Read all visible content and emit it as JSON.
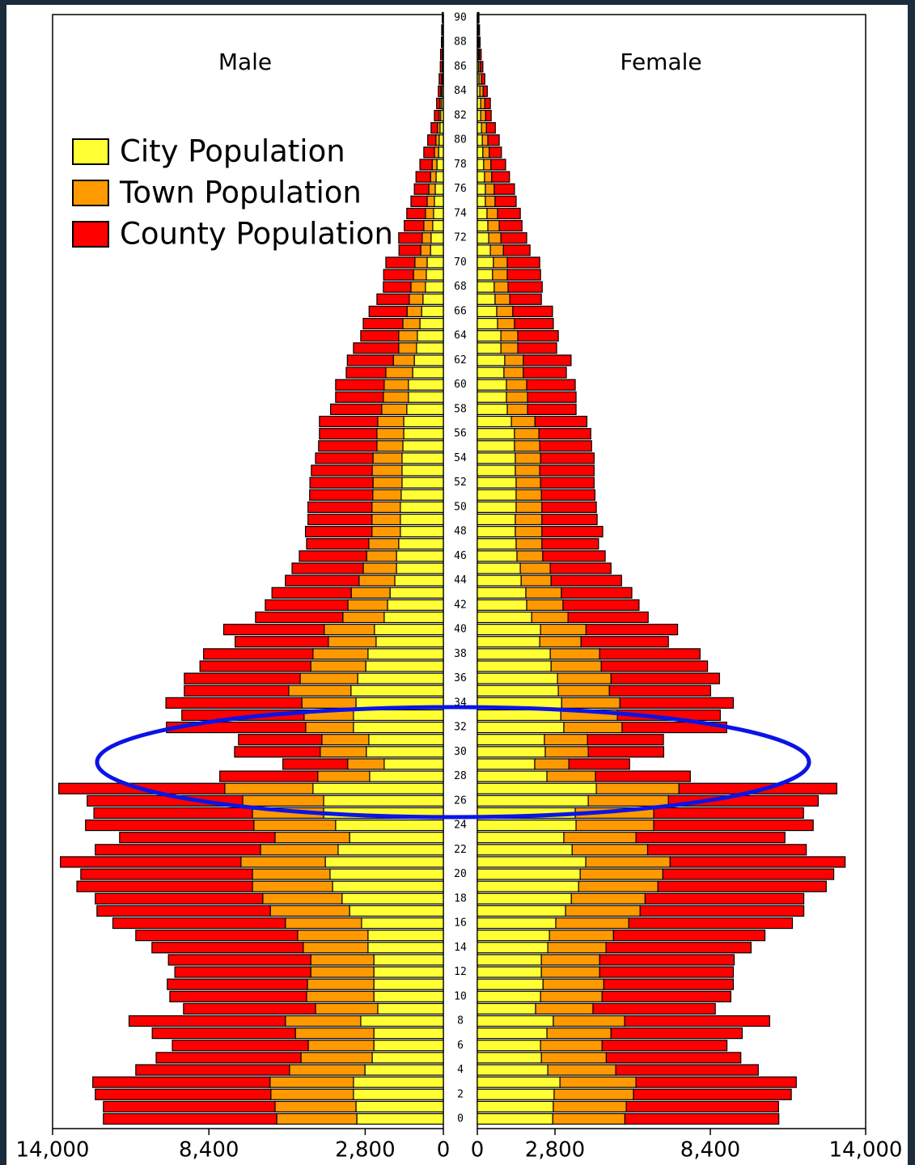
{
  "chart_data": {
    "type": "pyramid",
    "left_title": "Male",
    "right_title": "Female",
    "legend": "upper left",
    "categories": [
      0,
      null,
      2,
      null,
      4,
      null,
      6,
      null,
      8,
      null,
      10,
      null,
      12,
      null,
      14,
      null,
      16,
      null,
      18,
      null,
      20,
      null,
      22,
      null,
      24,
      null,
      26,
      null,
      28,
      null,
      30,
      null,
      32,
      null,
      34,
      null,
      36,
      null,
      38,
      null,
      40,
      null,
      42,
      null,
      44,
      null,
      46,
      null,
      48,
      null,
      50,
      null,
      52,
      null,
      54,
      null,
      56,
      null,
      58,
      null,
      60,
      null,
      62,
      null,
      64,
      null,
      66,
      null,
      68,
      null,
      70,
      null,
      72,
      null,
      74,
      null,
      76,
      null,
      78,
      null,
      80,
      null,
      82,
      null,
      84,
      null,
      86,
      null,
      88,
      null,
      90
    ],
    "xlim": [
      0,
      14000
    ],
    "xticks": [
      0,
      {
        "value": 2800,
        "label": "2,800"
      },
      {
        "value": 8400,
        "label": "8,400"
      },
      {
        "value": 14000,
        "label": "14,000"
      }
    ],
    "series": [
      {
        "name": "City Population",
        "color": "#ffff33",
        "male": [
          3100,
          3130,
          3220,
          3220,
          2810,
          2550,
          2490,
          2490,
          2960,
          2350,
          2490,
          2490,
          2490,
          2490,
          2700,
          2700,
          2930,
          3360,
          3630,
          3970,
          4060,
          4230,
          3770,
          3360,
          3860,
          4290,
          4290,
          4670,
          2640,
          2120,
          2760,
          2670,
          3220,
          3220,
          3130,
          3310,
          3070,
          2780,
          2700,
          2410,
          2470,
          2120,
          2000,
          1910,
          1740,
          1680,
          1680,
          1600,
          1540,
          1540,
          1540,
          1510,
          1480,
          1480,
          1480,
          1450,
          1420,
          1420,
          1310,
          1250,
          1250,
          1100,
          1040,
          960,
          930,
          840,
          780,
          730,
          640,
          610,
          580,
          460,
          440,
          380,
          350,
          320,
          290,
          260,
          230,
          170,
          150,
          120,
          90,
          60,
          50,
          30,
          20,
          20,
          10,
          10,
          10
        ],
        "female": [
          2720,
          2740,
          2770,
          2980,
          2540,
          2310,
          2280,
          2510,
          2740,
          2100,
          2280,
          2370,
          2310,
          2310,
          2540,
          2600,
          2830,
          3180,
          3390,
          3650,
          3710,
          3910,
          3420,
          3120,
          3560,
          3530,
          4000,
          4290,
          2510,
          2070,
          2450,
          2420,
          3120,
          3010,
          3040,
          2920,
          2890,
          2660,
          2630,
          2250,
          2280,
          1960,
          1780,
          1750,
          1580,
          1550,
          1430,
          1400,
          1370,
          1370,
          1400,
          1400,
          1400,
          1370,
          1370,
          1340,
          1340,
          1230,
          1080,
          1050,
          1050,
          960,
          990,
          850,
          850,
          730,
          700,
          640,
          610,
          550,
          580,
          470,
          410,
          380,
          350,
          290,
          290,
          260,
          230,
          200,
          180,
          150,
          120,
          120,
          90,
          60,
          50,
          40,
          30,
          20,
          20
        ]
      },
      {
        "name": "Town Population",
        "color": "#ff9900",
        "male": [
          2870,
          2900,
          2960,
          2990,
          2700,
          2550,
          2350,
          2810,
          2700,
          2230,
          2410,
          2380,
          2260,
          2260,
          2320,
          2520,
          2730,
          2840,
          2840,
          2870,
          2780,
          3020,
          2780,
          2670,
          2930,
          2550,
          2900,
          3160,
          1860,
          1310,
          1650,
          1680,
          1710,
          1770,
          1940,
          2230,
          2060,
          1970,
          1970,
          1710,
          1800,
          1480,
          1420,
          1390,
          1280,
          1190,
          1070,
          1070,
          1020,
          1020,
          1020,
          1020,
          1040,
          1070,
          1040,
          930,
          960,
          930,
          900,
          900,
          870,
          960,
          750,
          640,
          670,
          610,
          520,
          490,
          520,
          460,
          440,
          350,
          320,
          320,
          290,
          260,
          230,
          200,
          170,
          150,
          120,
          90,
          60,
          60,
          40,
          30,
          20,
          20,
          20,
          20,
          10
        ],
        "female": [
          2600,
          2630,
          2860,
          2740,
          2450,
          2340,
          2220,
          2310,
          2570,
          2070,
          2220,
          2190,
          2100,
          2100,
          2100,
          2310,
          2630,
          2690,
          2660,
          2860,
          2980,
          3040,
          2720,
          2600,
          2800,
          2830,
          2890,
          2980,
          1750,
          1230,
          1550,
          1550,
          2100,
          2040,
          2100,
          1840,
          1930,
          1810,
          1780,
          1490,
          1640,
          1310,
          1310,
          1280,
          1080,
          1080,
          930,
          930,
          960,
          960,
          930,
          910,
          880,
          880,
          910,
          910,
          880,
          850,
          730,
          760,
          730,
          700,
          670,
          610,
          610,
          610,
          580,
          530,
          500,
          530,
          500,
          470,
          440,
          410,
          380,
          350,
          320,
          260,
          260,
          230,
          200,
          180,
          180,
          150,
          120,
          90,
          60,
          40,
          30,
          30,
          20
        ]
      },
      {
        "name": "County Population",
        "color": "#ff0000",
        "male": [
          6210,
          6150,
          6290,
          6350,
          5510,
          5190,
          4870,
          5130,
          5600,
          4730,
          4900,
          5020,
          4870,
          5100,
          5420,
          5800,
          6180,
          6210,
          6000,
          6290,
          6150,
          6470,
          5920,
          5570,
          6030,
          5680,
          5570,
          5950,
          3510,
          2320,
          3070,
          2990,
          4990,
          4380,
          4870,
          3740,
          4150,
          3970,
          3920,
          3340,
          3600,
          3130,
          2960,
          2840,
          2640,
          2550,
          2410,
          2230,
          2380,
          2290,
          2290,
          2260,
          2260,
          2180,
          2060,
          2090,
          2060,
          2090,
          1830,
          1710,
          1740,
          1420,
          1650,
          1620,
          1360,
          1420,
          1360,
          1160,
          990,
          1070,
          1040,
          780,
          840,
          700,
          670,
          580,
          520,
          520,
          440,
          380,
          290,
          230,
          170,
          120,
          90,
          90,
          70,
          60,
          40,
          30,
          20
        ],
        "female": [
          5550,
          5490,
          5690,
          5780,
          5140,
          4850,
          4500,
          4730,
          5230,
          4410,
          4640,
          4670,
          4820,
          4850,
          5230,
          5460,
          5900,
          5900,
          5720,
          6070,
          6160,
          6310,
          5720,
          5370,
          5750,
          5400,
          5400,
          5690,
          3420,
          2190,
          2720,
          2740,
          3770,
          3710,
          4090,
          3650,
          3910,
          3830,
          3620,
          3150,
          3300,
          2890,
          2740,
          2540,
          2540,
          2190,
          2250,
          2040,
          2190,
          1990,
          1960,
          1930,
          1930,
          1960,
          1930,
          1870,
          1870,
          1870,
          1750,
          1750,
          1750,
          1550,
          1720,
          1400,
          1460,
          1400,
          1430,
          1140,
          1230,
          1200,
          1170,
          960,
          930,
          820,
          820,
          760,
          730,
          640,
          530,
          440,
          410,
          320,
          200,
          200,
          150,
          120,
          90,
          60,
          40,
          30,
          20
        ]
      }
    ]
  }
}
